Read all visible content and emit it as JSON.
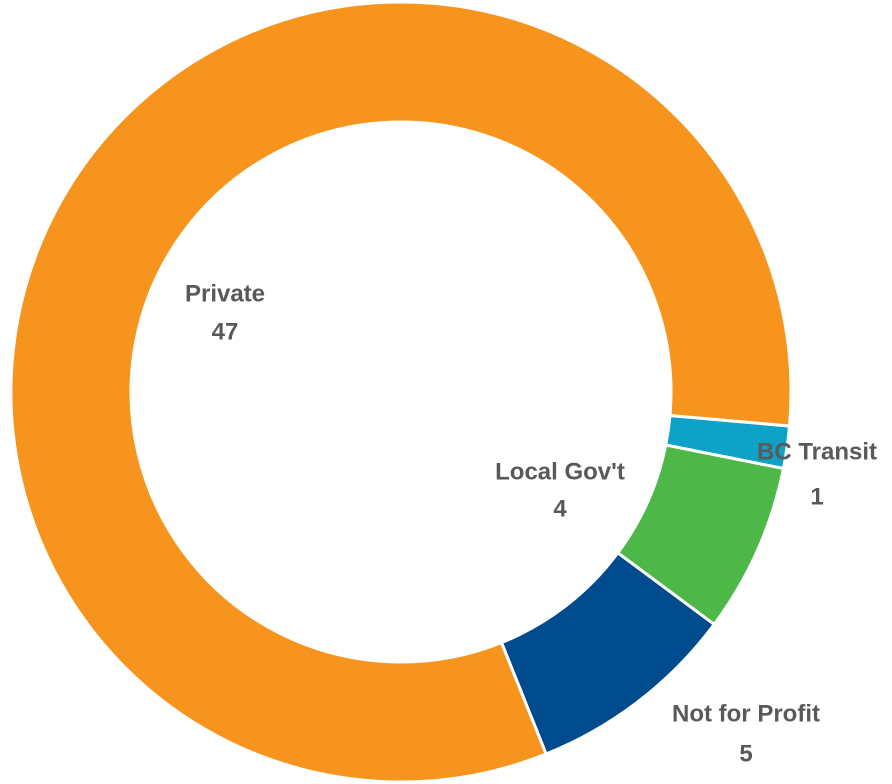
{
  "chart_data": {
    "type": "donut",
    "categories": [
      "BC Transit",
      "Local Gov't",
      "Not for Profit",
      "Private"
    ],
    "values": [
      1,
      4,
      5,
      47
    ],
    "colors": [
      "#0ea2c9",
      "#4db748",
      "#004b8d",
      "#f7941d"
    ]
  }
}
